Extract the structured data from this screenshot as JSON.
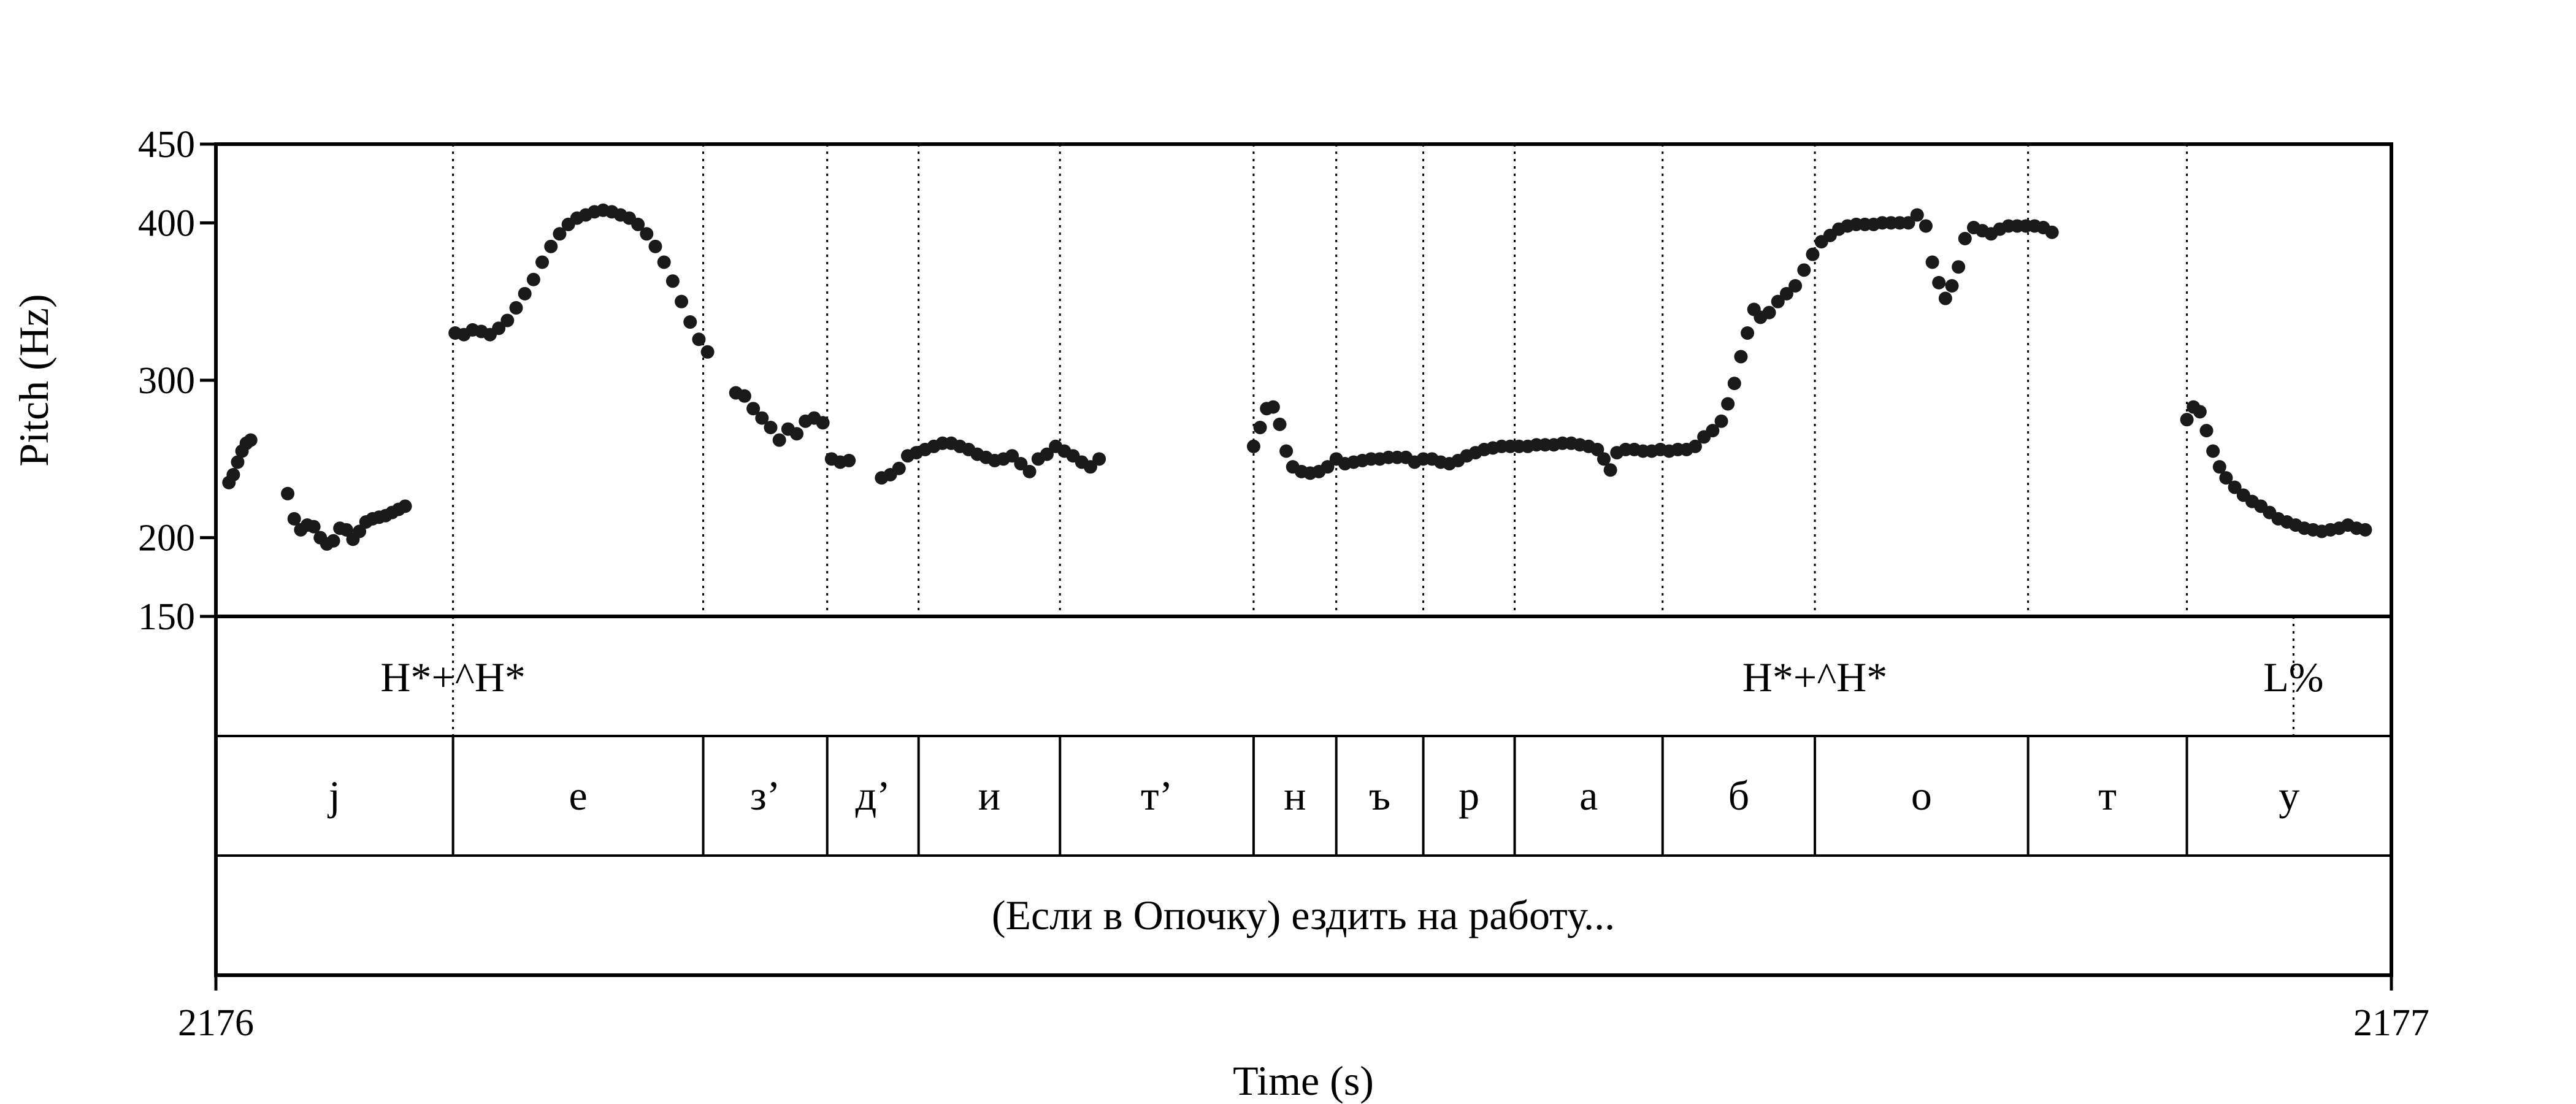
{
  "chart_data": {
    "type": "scatter",
    "ylabel": "Pitch (Hz)",
    "xlabel": "Time (s)",
    "x_ticks": [
      "2176",
      "2177"
    ],
    "xlim": [
      2176,
      2177
    ],
    "ylim": [
      150,
      450
    ],
    "y_ticks": [
      150,
      200,
      300,
      400,
      450
    ],
    "y_tick_labels": [
      "150",
      "200",
      "300",
      "400",
      "450"
    ],
    "grid": "dotted vertical lines at segment boundaries",
    "point_color": "#1a1a1a",
    "pitch_track": [
      [
        0.006,
        235
      ],
      [
        0.008,
        240
      ],
      [
        0.01,
        248
      ],
      [
        0.012,
        255
      ],
      [
        0.014,
        260
      ],
      [
        0.016,
        262
      ],
      [
        0.033,
        228
      ],
      [
        0.036,
        212
      ],
      [
        0.039,
        205
      ],
      [
        0.042,
        208
      ],
      [
        0.045,
        207
      ],
      [
        0.048,
        200
      ],
      [
        0.051,
        196
      ],
      [
        0.054,
        198
      ],
      [
        0.057,
        206
      ],
      [
        0.06,
        205
      ],
      [
        0.063,
        199
      ],
      [
        0.066,
        204
      ],
      [
        0.069,
        210
      ],
      [
        0.072,
        212
      ],
      [
        0.075,
        213
      ],
      [
        0.078,
        214
      ],
      [
        0.081,
        216
      ],
      [
        0.084,
        218
      ],
      [
        0.087,
        220
      ],
      [
        0.11,
        330
      ],
      [
        0.114,
        329
      ],
      [
        0.118,
        332
      ],
      [
        0.122,
        331
      ],
      [
        0.126,
        329
      ],
      [
        0.13,
        333
      ],
      [
        0.134,
        338
      ],
      [
        0.138,
        346
      ],
      [
        0.142,
        355
      ],
      [
        0.146,
        364
      ],
      [
        0.15,
        375
      ],
      [
        0.154,
        385
      ],
      [
        0.158,
        393
      ],
      [
        0.162,
        399
      ],
      [
        0.166,
        403
      ],
      [
        0.17,
        405
      ],
      [
        0.174,
        407
      ],
      [
        0.178,
        408
      ],
      [
        0.182,
        407
      ],
      [
        0.186,
        405
      ],
      [
        0.19,
        403
      ],
      [
        0.194,
        399
      ],
      [
        0.198,
        393
      ],
      [
        0.202,
        385
      ],
      [
        0.206,
        375
      ],
      [
        0.21,
        363
      ],
      [
        0.214,
        350
      ],
      [
        0.218,
        337
      ],
      [
        0.222,
        326
      ],
      [
        0.226,
        318
      ],
      [
        0.239,
        292
      ],
      [
        0.243,
        290
      ],
      [
        0.247,
        282
      ],
      [
        0.251,
        276
      ],
      [
        0.255,
        270
      ],
      [
        0.259,
        262
      ],
      [
        0.263,
        269
      ],
      [
        0.267,
        266
      ],
      [
        0.271,
        274
      ],
      [
        0.275,
        276
      ],
      [
        0.279,
        273
      ],
      [
        0.283,
        250
      ],
      [
        0.287,
        248
      ],
      [
        0.291,
        249
      ],
      [
        0.306,
        238
      ],
      [
        0.31,
        240
      ],
      [
        0.314,
        244
      ],
      [
        0.318,
        252
      ],
      [
        0.322,
        254
      ],
      [
        0.326,
        256
      ],
      [
        0.33,
        258
      ],
      [
        0.334,
        260
      ],
      [
        0.338,
        260
      ],
      [
        0.342,
        258
      ],
      [
        0.346,
        256
      ],
      [
        0.35,
        253
      ],
      [
        0.354,
        251
      ],
      [
        0.358,
        249
      ],
      [
        0.362,
        250
      ],
      [
        0.366,
        252
      ],
      [
        0.37,
        247
      ],
      [
        0.374,
        242
      ],
      [
        0.378,
        250
      ],
      [
        0.382,
        253
      ],
      [
        0.386,
        258
      ],
      [
        0.39,
        255
      ],
      [
        0.394,
        252
      ],
      [
        0.398,
        248
      ],
      [
        0.402,
        245
      ],
      [
        0.406,
        250
      ],
      [
        0.477,
        258
      ],
      [
        0.48,
        270
      ],
      [
        0.483,
        282
      ],
      [
        0.486,
        283
      ],
      [
        0.489,
        272
      ],
      [
        0.492,
        255
      ],
      [
        0.495,
        245
      ],
      [
        0.499,
        242
      ],
      [
        0.503,
        241
      ],
      [
        0.507,
        242
      ],
      [
        0.511,
        245
      ],
      [
        0.515,
        250
      ],
      [
        0.519,
        247
      ],
      [
        0.523,
        248
      ],
      [
        0.527,
        249
      ],
      [
        0.531,
        250
      ],
      [
        0.535,
        250
      ],
      [
        0.539,
        251
      ],
      [
        0.543,
        251
      ],
      [
        0.547,
        251
      ],
      [
        0.551,
        248
      ],
      [
        0.555,
        250
      ],
      [
        0.559,
        250
      ],
      [
        0.563,
        248
      ],
      [
        0.567,
        247
      ],
      [
        0.571,
        249
      ],
      [
        0.575,
        252
      ],
      [
        0.579,
        254
      ],
      [
        0.583,
        256
      ],
      [
        0.587,
        257
      ],
      [
        0.591,
        258
      ],
      [
        0.595,
        258
      ],
      [
        0.599,
        258
      ],
      [
        0.603,
        258
      ],
      [
        0.607,
        259
      ],
      [
        0.611,
        259
      ],
      [
        0.615,
        259
      ],
      [
        0.619,
        260
      ],
      [
        0.623,
        260
      ],
      [
        0.627,
        259
      ],
      [
        0.631,
        258
      ],
      [
        0.635,
        256
      ],
      [
        0.638,
        250
      ],
      [
        0.641,
        243
      ],
      [
        0.644,
        254
      ],
      [
        0.648,
        256
      ],
      [
        0.652,
        256
      ],
      [
        0.656,
        255
      ],
      [
        0.66,
        255
      ],
      [
        0.664,
        256
      ],
      [
        0.668,
        255
      ],
      [
        0.672,
        256
      ],
      [
        0.676,
        256
      ],
      [
        0.68,
        258
      ],
      [
        0.684,
        264
      ],
      [
        0.688,
        268
      ],
      [
        0.692,
        274
      ],
      [
        0.695,
        285
      ],
      [
        0.698,
        298
      ],
      [
        0.701,
        315
      ],
      [
        0.704,
        330
      ],
      [
        0.707,
        345
      ],
      [
        0.71,
        340
      ],
      [
        0.714,
        343
      ],
      [
        0.718,
        350
      ],
      [
        0.722,
        355
      ],
      [
        0.726,
        360
      ],
      [
        0.73,
        370
      ],
      [
        0.734,
        380
      ],
      [
        0.738,
        388
      ],
      [
        0.742,
        392
      ],
      [
        0.746,
        396
      ],
      [
        0.75,
        398
      ],
      [
        0.754,
        399
      ],
      [
        0.758,
        399
      ],
      [
        0.762,
        399
      ],
      [
        0.766,
        400
      ],
      [
        0.77,
        400
      ],
      [
        0.774,
        400
      ],
      [
        0.778,
        400
      ],
      [
        0.782,
        405
      ],
      [
        0.786,
        398
      ],
      [
        0.789,
        375
      ],
      [
        0.792,
        362
      ],
      [
        0.795,
        352
      ],
      [
        0.798,
        360
      ],
      [
        0.801,
        372
      ],
      [
        0.804,
        390
      ],
      [
        0.808,
        397
      ],
      [
        0.812,
        395
      ],
      [
        0.816,
        393
      ],
      [
        0.82,
        396
      ],
      [
        0.824,
        398
      ],
      [
        0.828,
        398
      ],
      [
        0.832,
        398
      ],
      [
        0.836,
        398
      ],
      [
        0.84,
        397
      ],
      [
        0.844,
        394
      ],
      [
        0.906,
        275
      ],
      [
        0.909,
        283
      ],
      [
        0.912,
        280
      ],
      [
        0.915,
        268
      ],
      [
        0.918,
        255
      ],
      [
        0.921,
        245
      ],
      [
        0.924,
        238
      ],
      [
        0.928,
        232
      ],
      [
        0.932,
        227
      ],
      [
        0.936,
        223
      ],
      [
        0.94,
        220
      ],
      [
        0.944,
        216
      ],
      [
        0.948,
        212
      ],
      [
        0.952,
        210
      ],
      [
        0.956,
        208
      ],
      [
        0.96,
        206
      ],
      [
        0.964,
        205
      ],
      [
        0.968,
        204
      ],
      [
        0.972,
        205
      ],
      [
        0.976,
        206
      ],
      [
        0.98,
        208
      ],
      [
        0.984,
        206
      ],
      [
        0.988,
        205
      ]
    ],
    "tone_tier": {
      "boundaries": [
        0.109,
        0.955
      ],
      "labels": [
        {
          "t": 0.109,
          "text": "H*+^H*"
        },
        {
          "t": 0.735,
          "text": "H*+^H*"
        },
        {
          "t": 0.955,
          "text": "L%"
        }
      ]
    },
    "segment_tier": {
      "boundaries": [
        0.0,
        0.109,
        0.224,
        0.281,
        0.323,
        0.388,
        0.477,
        0.515,
        0.555,
        0.597,
        0.665,
        0.735,
        0.833,
        0.906,
        1.0
      ],
      "labels": [
        "j",
        "е",
        "з’",
        "д’",
        "и",
        "т’",
        "н",
        "ъ",
        "р",
        "а",
        "б",
        "о",
        "т",
        "у"
      ]
    },
    "utterance_tier": {
      "text": "(Если в Опочку) ездить на работу..."
    }
  }
}
